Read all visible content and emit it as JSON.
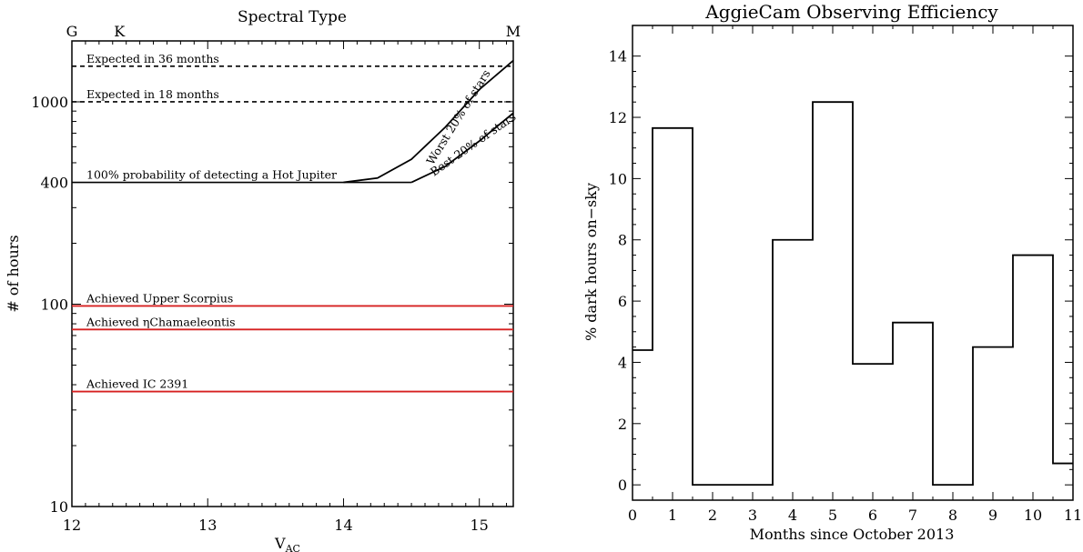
{
  "chart_data": [
    {
      "type": "line",
      "title": "Spectral Type",
      "xlabel": "V",
      "xlabel_sub": "AC",
      "ylabel": "# of hours",
      "yscale": "log",
      "xlim": [
        12,
        15.25
      ],
      "ylim": [
        10,
        2000
      ],
      "x_ticks": [
        "12",
        "13",
        "14",
        "15"
      ],
      "y_ticks": [
        {
          "value": 10,
          "label": "10"
        },
        {
          "value": 100,
          "label": "100"
        },
        {
          "value": 400,
          "label": "400"
        },
        {
          "value": 1000,
          "label": "1000"
        }
      ],
      "top_axis_ticks": [
        {
          "x": 12,
          "label": "G"
        },
        {
          "x": 12.35,
          "label": "K"
        },
        {
          "x": 15.25,
          "label": "M"
        }
      ],
      "hlines": [
        {
          "label": "Expected in 36 months",
          "y": 1500,
          "style": "dashed",
          "color": "#000000"
        },
        {
          "label": "Expected in 18 months",
          "y": 1000,
          "style": "dashed",
          "color": "#000000"
        },
        {
          "label": "100% probability of detecting a Hot Jupiter",
          "y": 400,
          "style": "solid",
          "color": "#000000"
        },
        {
          "label": "Achieved Upper Scorpius",
          "y": 98,
          "style": "solid",
          "color": "#d62020"
        },
        {
          "label": "Achieved ηChamaeleontis",
          "y": 75,
          "style": "solid",
          "color": "#d62020"
        },
        {
          "label": "Achieved IC 2391",
          "y": 37,
          "style": "solid",
          "color": "#d62020"
        }
      ],
      "series": [
        {
          "name": "Worst 20% of stars",
          "x": [
            14.0,
            14.25,
            14.5,
            14.75,
            15.0,
            15.25
          ],
          "y": [
            400,
            420,
            520,
            750,
            1150,
            1600
          ]
        },
        {
          "name": "Best 20% of stars",
          "x": [
            14.5,
            14.75,
            15.0,
            15.25
          ],
          "y": [
            400,
            480,
            640,
            880
          ]
        }
      ]
    },
    {
      "type": "line",
      "step": true,
      "title": "AggieCam Observing Efficiency",
      "xlabel": "Months since October 2013",
      "ylabel": "% dark hours on−sky",
      "xlim": [
        0,
        11
      ],
      "ylim": [
        -0.5,
        15
      ],
      "x_ticks": [
        "0",
        "1",
        "2",
        "3",
        "4",
        "5",
        "6",
        "7",
        "8",
        "9",
        "10",
        "11"
      ],
      "y_ticks": [
        "0",
        "2",
        "4",
        "6",
        "8",
        "10",
        "12",
        "14"
      ],
      "x": [
        0,
        1,
        2,
        3,
        4,
        5,
        6,
        7,
        8,
        9,
        10,
        11
      ],
      "values": [
        4.4,
        11.65,
        0,
        0,
        8.0,
        12.5,
        3.95,
        5.3,
        0,
        4.5,
        7.5,
        0.7
      ]
    }
  ]
}
